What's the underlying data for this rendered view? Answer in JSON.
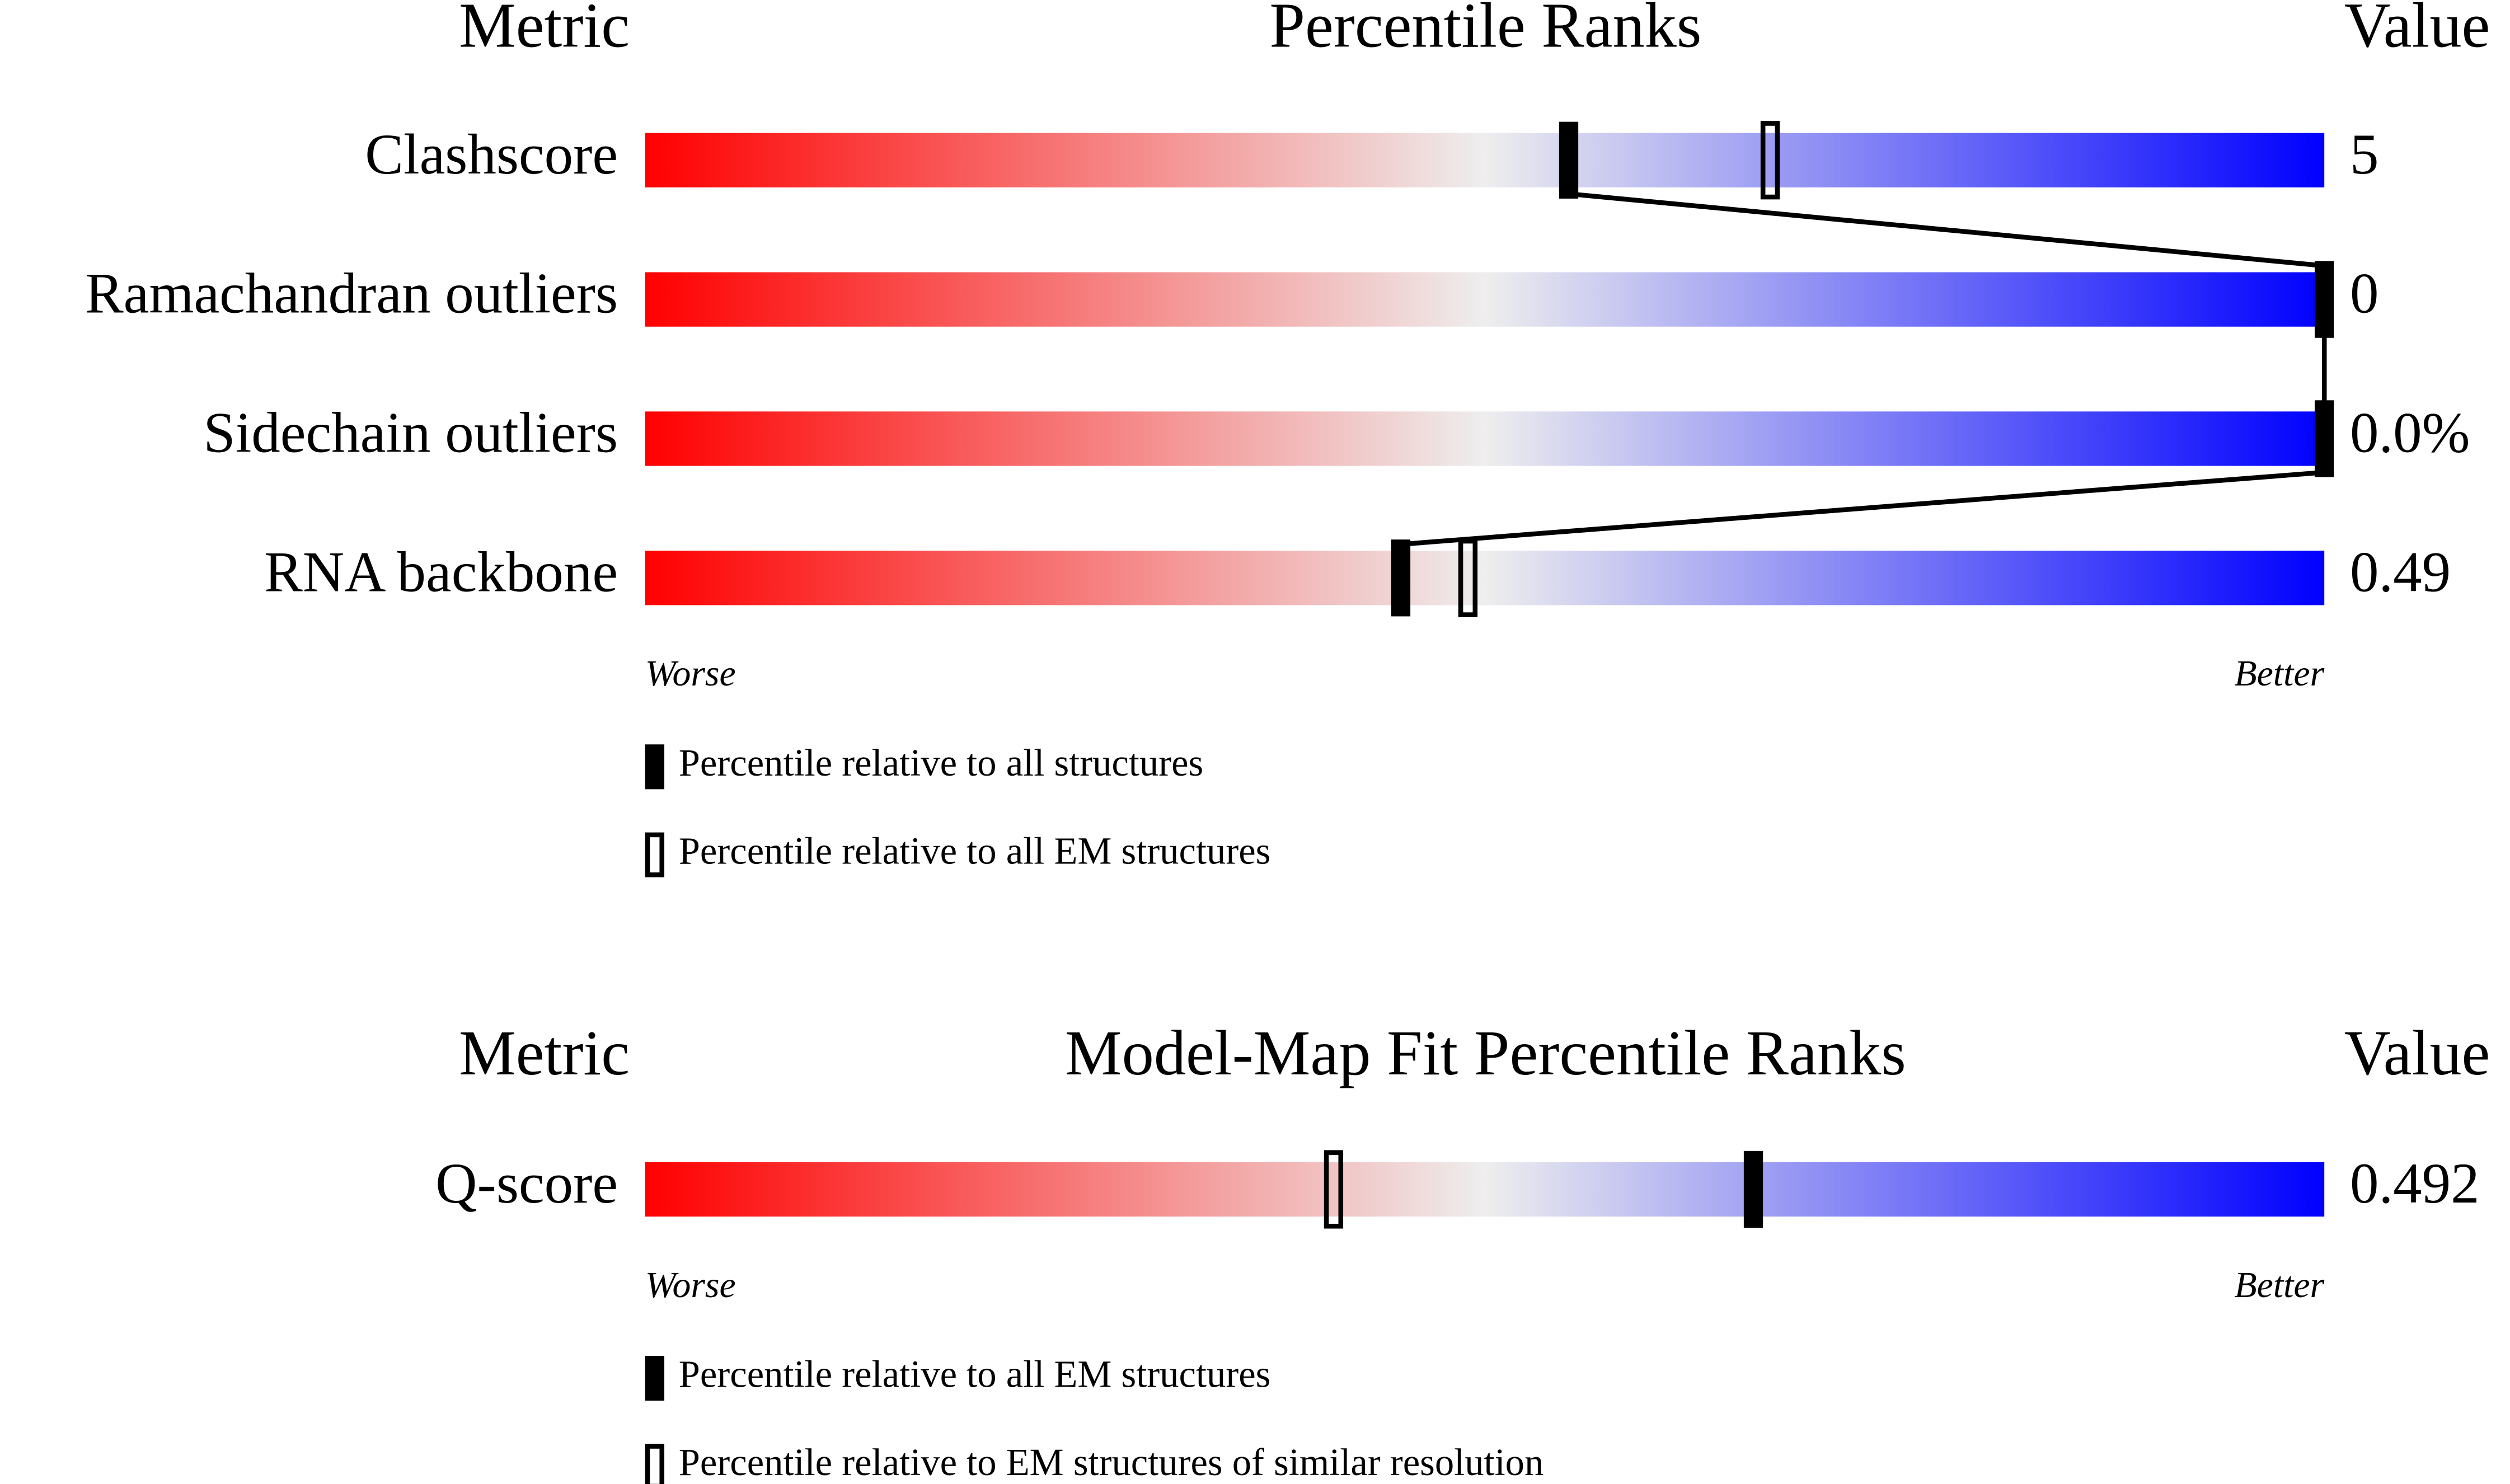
{
  "chart_data": [
    {
      "type": "percentile",
      "metric_header": "Metric",
      "title": "Percentile Ranks",
      "value_header": "Value",
      "categories": [
        "Clashscore",
        "Ramachandran outliers",
        "Sidechain outliers",
        "RNA backbone"
      ],
      "metric_values": [
        "5",
        "0",
        "0.0%",
        "0.49"
      ],
      "series": [
        {
          "name": "Percentile relative to all structures",
          "style": "filled",
          "color": "#000000",
          "values": [
            55,
            100,
            100,
            45
          ]
        },
        {
          "name": "Percentile relative to all EM structures",
          "style": "open",
          "color": "#000000",
          "values": [
            67,
            null,
            null,
            49
          ]
        }
      ],
      "connect": true,
      "xlim": [
        0,
        100
      ],
      "low_label": "Worse",
      "high_label": "Better",
      "gradient": [
        "#ff0000",
        "#eeeeee",
        "#0000ff"
      ]
    },
    {
      "type": "percentile",
      "metric_header": "Metric",
      "title": "Model-Map Fit Percentile Ranks",
      "value_header": "Value",
      "categories": [
        "Q-score"
      ],
      "metric_values": [
        "0.492"
      ],
      "series": [
        {
          "name": "Percentile relative to all EM structures",
          "style": "filled",
          "color": "#000000",
          "values": [
            66
          ]
        },
        {
          "name": "Percentile relative to EM structures of similar resolution",
          "style": "open",
          "color": "#000000",
          "values": [
            41
          ]
        }
      ],
      "connect": false,
      "xlim": [
        0,
        100
      ],
      "low_label": "Worse",
      "high_label": "Better",
      "gradient": [
        "#ff0000",
        "#eeeeee",
        "#0000ff"
      ]
    }
  ]
}
